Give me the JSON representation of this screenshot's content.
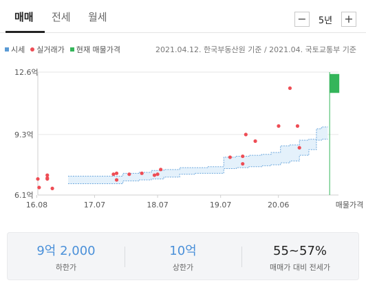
{
  "tabs": [
    {
      "label": "매매",
      "active": true
    },
    {
      "label": "전세",
      "active": false
    },
    {
      "label": "월세",
      "active": false
    }
  ],
  "period": {
    "minus": "−",
    "value": "5년",
    "plus": "+"
  },
  "legend": {
    "items": [
      {
        "label": "시세",
        "color": "#5b9bd5",
        "shape": "square"
      },
      {
        "label": "실거래가",
        "color": "#ee4d55",
        "shape": "dot"
      },
      {
        "label": "현재 매물가격",
        "color": "#34b55a",
        "shape": "square"
      }
    ],
    "source": "2021.04.12. 한국부동산원 기준 / 2021.04. 국토교통부 기준"
  },
  "chart_data": {
    "type": "line",
    "y_unit": "억",
    "y_ticks": [
      {
        "value": 6.1,
        "label": "6.1억"
      },
      {
        "value": 9.3,
        "label": "9.3억"
      },
      {
        "value": 12.6,
        "label": "12.6억"
      }
    ],
    "ylim": [
      6.1,
      12.6
    ],
    "xlim": [
      2016.6,
      2021.37
    ],
    "x_ticks": [
      {
        "value": 2016.583,
        "label": "16.08"
      },
      {
        "value": 2017.5,
        "label": "17.07"
      },
      {
        "value": 2018.5,
        "label": "18.07"
      },
      {
        "value": 2019.5,
        "label": "19.07"
      },
      {
        "value": 2020.417,
        "label": "20.06"
      }
    ],
    "current_label": "매물가격",
    "price_band": {
      "name": "시세",
      "x": [
        2017.08,
        2017.6,
        2017.95,
        2018.2,
        2018.4,
        2018.6,
        2018.85,
        2019.1,
        2019.3,
        2019.45,
        2019.55,
        2019.75,
        2019.95,
        2020.15,
        2020.3,
        2020.45,
        2020.6,
        2020.75,
        2020.9,
        2021.02,
        2021.1,
        2021.2
      ],
      "upper": [
        7.1,
        7.1,
        7.25,
        7.3,
        7.4,
        7.45,
        7.55,
        7.55,
        7.6,
        7.6,
        8.1,
        8.15,
        8.2,
        8.25,
        8.35,
        8.7,
        8.75,
        9.0,
        9.05,
        9.6,
        9.7,
        9.7
      ],
      "lower": [
        6.7,
        6.7,
        6.85,
        6.9,
        6.95,
        7.05,
        7.2,
        7.25,
        7.25,
        7.25,
        7.5,
        7.55,
        7.6,
        7.65,
        7.7,
        7.8,
        7.9,
        8.2,
        8.5,
        9.0,
        9.05,
        9.05
      ]
    },
    "transactions": {
      "name": "실거래가",
      "points": [
        [
          2016.6,
          6.95
        ],
        [
          2016.62,
          6.5
        ],
        [
          2016.75,
          7.15
        ],
        [
          2016.75,
          7.0
        ],
        [
          2016.75,
          6.95
        ],
        [
          2016.83,
          6.45
        ],
        [
          2017.8,
          7.2
        ],
        [
          2017.85,
          7.25
        ],
        [
          2017.85,
          6.9
        ],
        [
          2018.05,
          7.2
        ],
        [
          2018.25,
          7.25
        ],
        [
          2018.45,
          7.15
        ],
        [
          2018.5,
          7.2
        ],
        [
          2018.55,
          7.45
        ],
        [
          2019.65,
          8.1
        ],
        [
          2019.85,
          8.15
        ],
        [
          2019.85,
          7.75
        ],
        [
          2019.9,
          9.3
        ],
        [
          2020.05,
          8.95
        ],
        [
          2020.42,
          9.75
        ],
        [
          2020.6,
          11.75
        ],
        [
          2020.72,
          9.75
        ],
        [
          2020.75,
          8.6
        ]
      ]
    },
    "current_listing": {
      "name": "현재 매물가격",
      "low": 11.5,
      "high": 12.5
    }
  },
  "summary": [
    {
      "value": "9억 2,000",
      "label": "하한가",
      "color": "blue"
    },
    {
      "value": "10억",
      "label": "상한가",
      "color": "blue"
    },
    {
      "value": "55~57%",
      "label": "매매가 대비 전세가",
      "color": "dark"
    }
  ]
}
